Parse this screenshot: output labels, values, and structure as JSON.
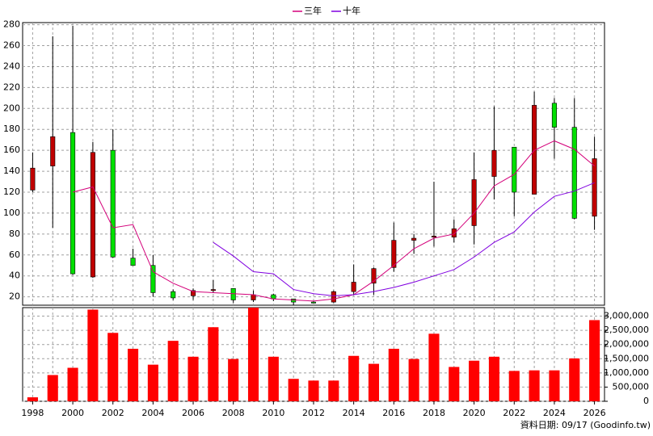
{
  "chart_data": {
    "type": "candlestick",
    "x": [
      1998,
      1999,
      2000,
      2001,
      2002,
      2003,
      2004,
      2005,
      2006,
      2007,
      2008,
      2009,
      2010,
      2011,
      2012,
      2013,
      2014,
      2015,
      2016,
      2017,
      2018,
      2019,
      2020,
      2021,
      2022,
      2023,
      2024,
      2025,
      2026
    ],
    "open": [
      122,
      145,
      177,
      39,
      160,
      57,
      50,
      25,
      21,
      26,
      28,
      17,
      22,
      18,
      15,
      15,
      25,
      33,
      48,
      74,
      77,
      77,
      88,
      135,
      163,
      118,
      205,
      182,
      97
    ],
    "high": [
      158,
      269,
      279,
      168,
      180,
      66,
      60,
      27,
      28,
      36,
      28,
      26,
      23,
      18,
      16,
      26,
      51,
      48,
      91,
      80,
      130,
      94,
      158,
      202,
      163,
      216,
      210,
      210,
      173
    ],
    "low": [
      120,
      86,
      41,
      38,
      57,
      50,
      20,
      17,
      17,
      24,
      14,
      15,
      16,
      12,
      14,
      14,
      22,
      22,
      44,
      61,
      68,
      72,
      70,
      113,
      97,
      118,
      152,
      94,
      84
    ],
    "close": [
      143,
      173,
      42,
      158,
      58,
      50,
      24,
      19,
      26,
      27,
      17,
      22,
      18,
      15,
      14,
      25,
      34,
      47,
      74,
      76,
      78,
      85,
      132,
      160,
      120,
      203,
      182,
      95,
      152
    ],
    "up_color": "#c00000",
    "down_color": "#00e000",
    "series": [
      {
        "name": "三年",
        "color": "#d4007a",
        "values": [
          null,
          null,
          120,
          125,
          86,
          89,
          44,
          33,
          25,
          24,
          23,
          22,
          18,
          17,
          16,
          18,
          22,
          35,
          50,
          66,
          76,
          80,
          100,
          126,
          137,
          160,
          169,
          161,
          145
        ]
      },
      {
        "name": "十年",
        "color": "#8000e0",
        "values": [
          null,
          null,
          null,
          null,
          null,
          null,
          null,
          null,
          null,
          72,
          59,
          44,
          42,
          27,
          23,
          21,
          22,
          25,
          29,
          34,
          40,
          46,
          58,
          72,
          82,
          101,
          116,
          121,
          129
        ]
      }
    ],
    "xlim": [
      1997.5,
      2026.5
    ],
    "xticks": [
      1998,
      2000,
      2002,
      2004,
      2006,
      2008,
      2010,
      2012,
      2014,
      2016,
      2018,
      2020,
      2022,
      2024,
      2026
    ],
    "ylim": [
      12,
      282
    ],
    "yticks": [
      20,
      40,
      60,
      80,
      100,
      120,
      140,
      160,
      180,
      200,
      220,
      240,
      260,
      280
    ],
    "grid": true,
    "volume": {
      "color": "#ff0000",
      "values": [
        140000,
        925000,
        1180000,
        3230000,
        2410000,
        1850000,
        1290000,
        2130000,
        1570000,
        2610000,
        1490000,
        3300000,
        1570000,
        790000,
        730000,
        730000,
        1600000,
        1320000,
        1850000,
        1490000,
        2380000,
        1210000,
        1430000,
        1570000,
        1070000,
        1090000,
        1090000,
        1510000,
        2860000
      ],
      "ylim": [
        0,
        3300000
      ],
      "yticks": [
        0,
        {
          "value": 500000,
          "label": "500,000"
        },
        {
          "value": 1000000,
          "label": "1,000,000"
        },
        {
          "value": 1500000,
          "label": "1,500,000"
        },
        {
          "value": 2000000,
          "label": "2,000,000"
        },
        {
          "value": 2500000,
          "label": "2,500,000"
        },
        {
          "value": 3000000,
          "label": "3,000,000"
        }
      ]
    },
    "footnote": "資料日期: 09/17 (Goodinfo.tw)"
  }
}
